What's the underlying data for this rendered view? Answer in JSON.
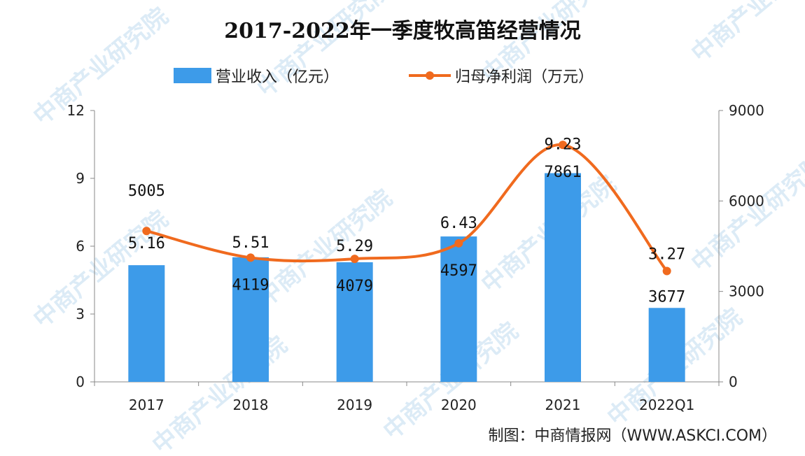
{
  "chart_data": {
    "type": "bar+line",
    "title": "2017-2022年一季度牧高笛经营情况",
    "categories": [
      "2017",
      "2018",
      "2019",
      "2020",
      "2021",
      "2022Q1"
    ],
    "series": [
      {
        "name": "营业收入（亿元）",
        "type": "bar",
        "axis": "left",
        "color": "#3d9be9",
        "values": [
          5.16,
          5.51,
          5.29,
          6.43,
          9.23,
          3.27
        ],
        "labels": [
          "5.16",
          "5.51",
          "5.29",
          "6.43",
          "9.23",
          "3.27"
        ]
      },
      {
        "name": "归母净利润（万元）",
        "type": "line",
        "axis": "right",
        "color": "#f06a1e",
        "values": [
          5005,
          4119,
          4079,
          4597,
          7861,
          3677
        ],
        "labels": [
          "5005",
          "4119",
          "4079",
          "4597",
          "7861",
          "3677"
        ]
      }
    ],
    "left_axis": {
      "range": [
        0,
        12
      ],
      "ticks": [
        "0",
        "3",
        "6",
        "9",
        "12"
      ]
    },
    "right_axis": {
      "range": [
        0,
        9000
      ],
      "ticks": [
        "0",
        "3000",
        "6000",
        "9000"
      ]
    },
    "legend_position": "top",
    "grid": false
  },
  "source": "制图：中商情报网（WWW.ASKCI.COM）",
  "watermark": "中商产业研究院"
}
